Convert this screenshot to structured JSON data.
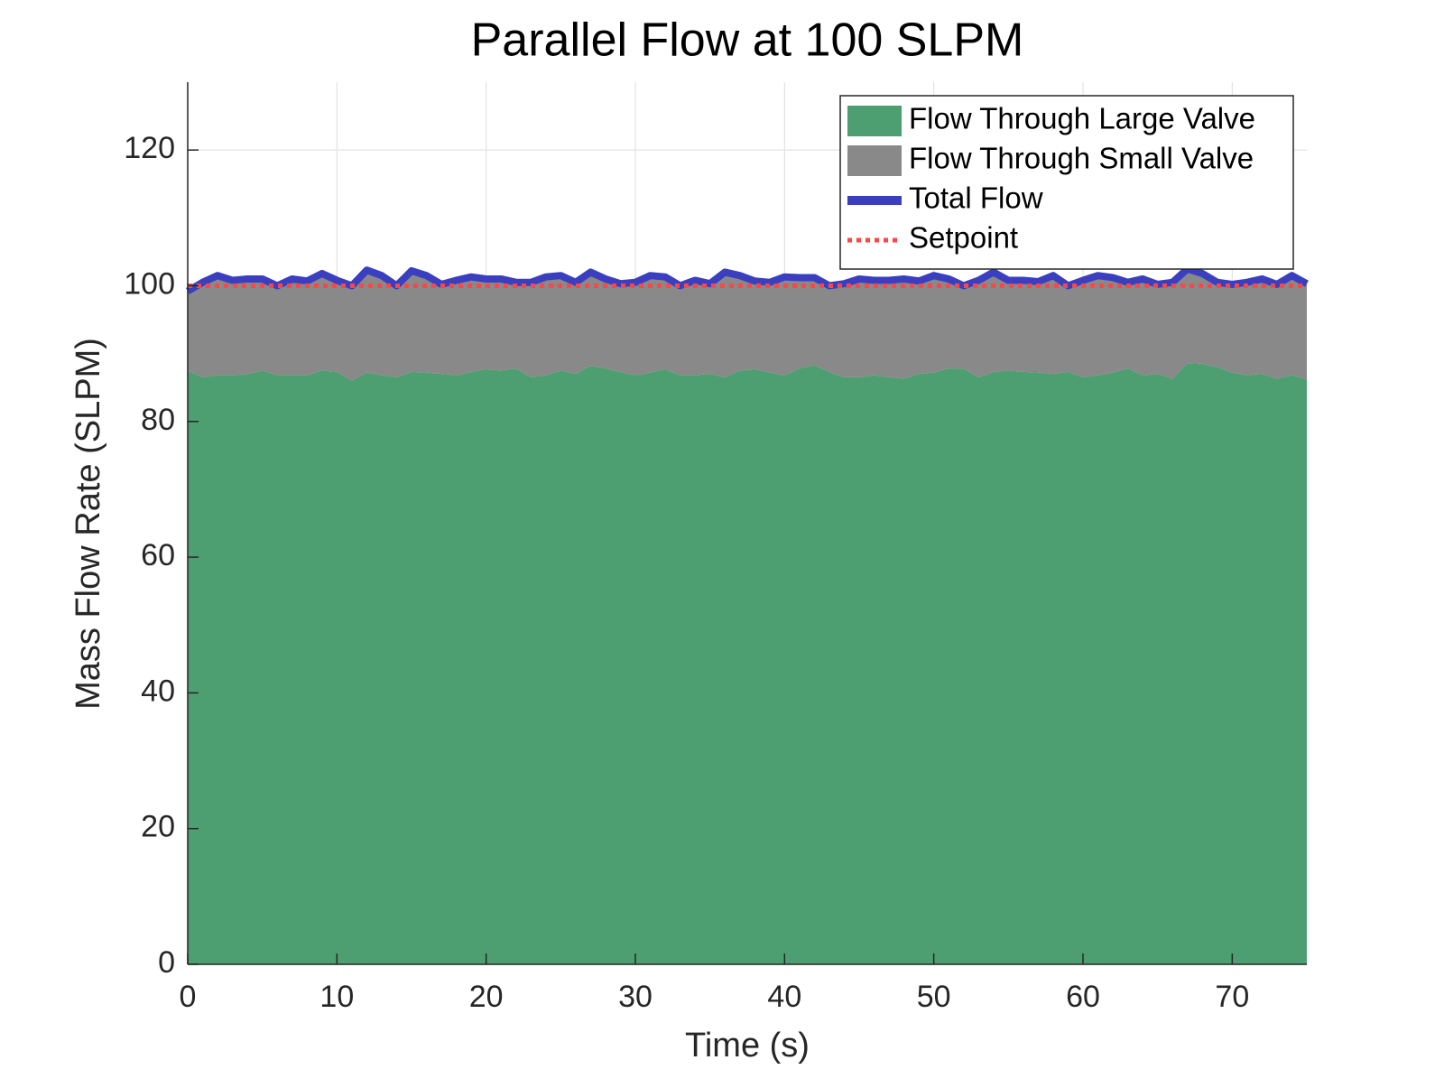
{
  "chart_data": {
    "type": "area",
    "title": "Parallel Flow at 100 SLPM",
    "xlabel": "Time (s)",
    "ylabel": "Mass Flow Rate (SLPM)",
    "xlim": [
      0,
      75
    ],
    "ylim": [
      0,
      130
    ],
    "xticks": [
      0,
      10,
      20,
      30,
      40,
      50,
      60,
      70
    ],
    "yticks": [
      0,
      20,
      40,
      60,
      80,
      100,
      120
    ],
    "grid": true,
    "legend": "northeast",
    "x": [
      0,
      1,
      2,
      3,
      4,
      5,
      6,
      7,
      8,
      9,
      10,
      11,
      12,
      13,
      14,
      15,
      16,
      17,
      18,
      19,
      20,
      21,
      22,
      23,
      24,
      25,
      26,
      27,
      28,
      29,
      30,
      31,
      32,
      33,
      34,
      35,
      36,
      37,
      38,
      39,
      40,
      41,
      42,
      43,
      44,
      45,
      46,
      47,
      48,
      49,
      50,
      51,
      52,
      53,
      54,
      55,
      56,
      57,
      58,
      59,
      60,
      61,
      62,
      63,
      64,
      65,
      66,
      67,
      68,
      69,
      70,
      71,
      72,
      73,
      74,
      75
    ],
    "series": [
      {
        "name": "Flow Through Large Valve",
        "kind": "area",
        "color": "#4d9e70",
        "values": [
          87.5,
          86.5,
          86.8,
          86.8,
          87,
          87.5,
          86.8,
          86.8,
          86.8,
          87.5,
          87.3,
          86,
          87.2,
          86.8,
          86.5,
          87.3,
          87.2,
          87,
          86.8,
          87.3,
          87.7,
          87.5,
          87.8,
          86.5,
          86.8,
          87.5,
          87,
          88.2,
          87.8,
          87.3,
          86.8,
          87.2,
          87.7,
          86.8,
          86.8,
          87,
          86.5,
          87.5,
          87.7,
          87.2,
          86.8,
          87.8,
          88.3,
          87.3,
          86.5,
          86.5,
          86.8,
          86.5,
          86.3,
          87,
          87.2,
          87.8,
          87.8,
          86.5,
          87.3,
          87.5,
          87.3,
          87.2,
          87,
          87.3,
          86.5,
          86.8,
          87.2,
          87.8,
          86.8,
          87,
          86.3,
          88.6,
          88.5,
          88,
          87.2,
          86.8,
          87,
          86.3,
          86.8,
          86.2
        ]
      },
      {
        "name": "Flow Through Small Valve",
        "kind": "area",
        "color": "#898989",
        "values": [
          11.7,
          14.0,
          14.7,
          14.0,
          14.0,
          13.5,
          13.2,
          14.2,
          13.9,
          14.3,
          13.5,
          14.0,
          15.1,
          14.7,
          13.5,
          14.9,
          14.3,
          13.2,
          14.0,
          14.0,
          13.3,
          13.5,
          12.7,
          14.0,
          14.5,
          14.0,
          13.5,
          13.8,
          13.2,
          13.0,
          13.7,
          14.3,
          13.6,
          13.2,
          14.0,
          13.3,
          15.5,
          14.0,
          13.0,
          13.3,
          14.5,
          13.4,
          12.9,
          12.7,
          13.8,
          14.5,
          14.0,
          14.3,
          14.7,
          13.7,
          14.3,
          13.2,
          12.2,
          14.3,
          14.7,
          13.3,
          13.5,
          13.4,
          14.5,
          12.7,
          14.3,
          14.7,
          14.0,
          12.7,
          14.2,
          13.2,
          14.2,
          13.9,
          13.3,
          12.5,
          13.0,
          13.7,
          14.0,
          13.9,
          14.7,
          14.1
        ]
      },
      {
        "name": "Total Flow",
        "kind": "line",
        "color": "#3a3fbf",
        "values": [
          99.2,
          100.5,
          101.5,
          100.8,
          101,
          101,
          100,
          101,
          100.7,
          101.8,
          100.8,
          100,
          102.3,
          101.5,
          100,
          102.2,
          101.5,
          100.2,
          100.8,
          101.3,
          101,
          101,
          100.5,
          100.5,
          101.3,
          101.5,
          100.5,
          102,
          101,
          100.3,
          100.5,
          101.5,
          101.3,
          100,
          100.8,
          100.3,
          102,
          101.5,
          100.7,
          100.5,
          101.3,
          101.2,
          101.2,
          100,
          100.3,
          101,
          100.8,
          100.8,
          101,
          100.7,
          101.5,
          101,
          100,
          100.8,
          102,
          100.8,
          100.8,
          100.6,
          101.5,
          100,
          100.8,
          101.5,
          101.2,
          100.5,
          101,
          100.2,
          100.5,
          102.5,
          101.8,
          100.5,
          100.2,
          100.5,
          101,
          100.2,
          101.5,
          100.3
        ]
      },
      {
        "name": "Setpoint",
        "kind": "line",
        "dash": "dotted",
        "color": "#ff4545",
        "values": [
          100,
          100,
          100,
          100,
          100,
          100,
          100,
          100,
          100,
          100,
          100,
          100,
          100,
          100,
          100,
          100,
          100,
          100,
          100,
          100,
          100,
          100,
          100,
          100,
          100,
          100,
          100,
          100,
          100,
          100,
          100,
          100,
          100,
          100,
          100,
          100,
          100,
          100,
          100,
          100,
          100,
          100,
          100,
          100,
          100,
          100,
          100,
          100,
          100,
          100,
          100,
          100,
          100,
          100,
          100,
          100,
          100,
          100,
          100,
          100,
          100,
          100,
          100,
          100,
          100,
          100,
          100,
          100,
          100,
          100,
          100,
          100,
          100,
          100,
          100,
          100
        ]
      }
    ]
  }
}
